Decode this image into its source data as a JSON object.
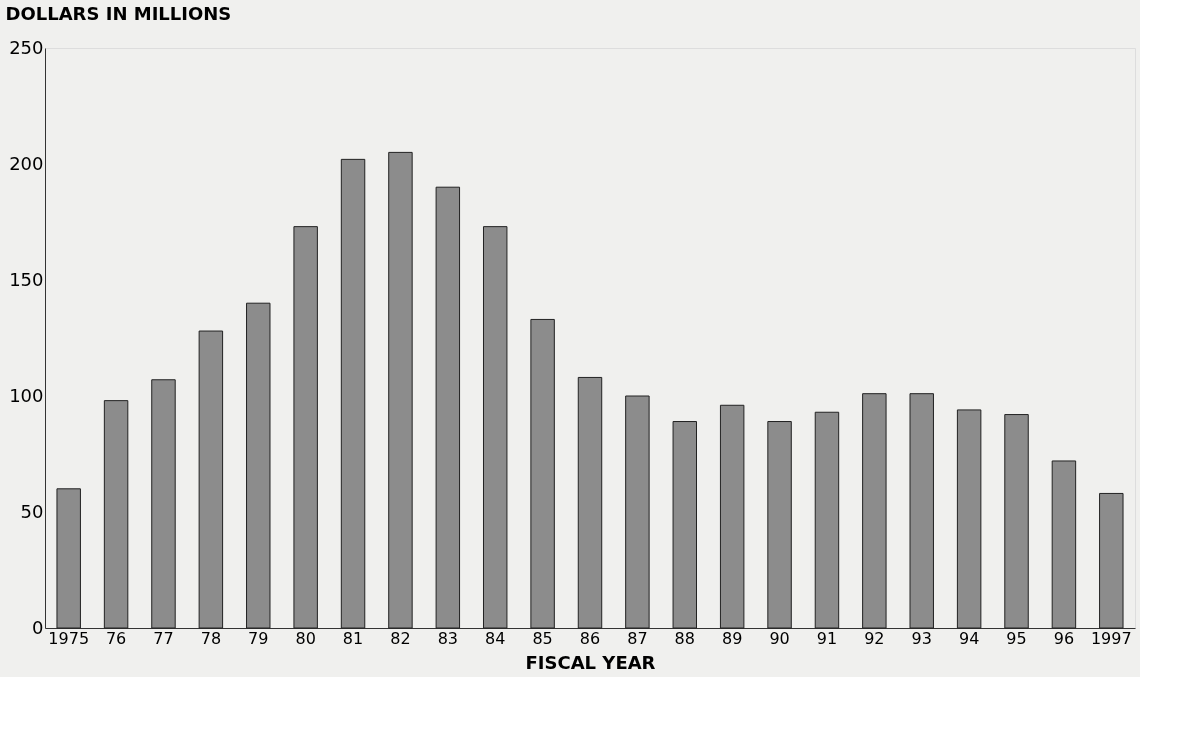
{
  "chart_data": {
    "type": "bar",
    "ylabel": "DOLLARS IN MILLIONS",
    "xlabel": "FISCAL YEAR",
    "categories": [
      "1975",
      "76",
      "77",
      "78",
      "79",
      "80",
      "81",
      "82",
      "83",
      "84",
      "85",
      "86",
      "87",
      "88",
      "89",
      "90",
      "91",
      "92",
      "93",
      "94",
      "95",
      "96",
      "1997"
    ],
    "values": [
      60,
      98,
      107,
      128,
      140,
      173,
      202,
      205,
      190,
      173,
      133,
      108,
      100,
      89,
      96,
      89,
      93,
      101,
      101,
      94,
      92,
      72,
      58
    ],
    "color": "#8c8c8c",
    "ylim": [
      0,
      250
    ],
    "yticks": [
      0,
      50,
      100,
      150,
      200,
      250
    ],
    "grid": false
  }
}
